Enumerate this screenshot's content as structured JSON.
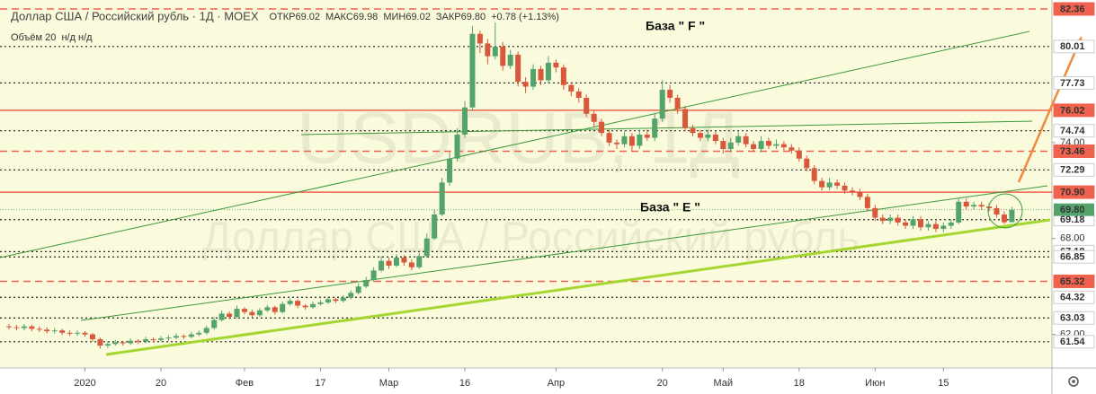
{
  "chart_data": {
    "type": "candlestick",
    "title": "Доллар США / Российский рубль · 1Д · MOEX",
    "ohlc_legend": [
      "ОТКР69.02",
      "МАКС69.98",
      "МИН69.02",
      "ЗАКР69.80",
      "+0.78 (+1.13%)"
    ],
    "volume_legend": "Объём 20  н/д н/д",
    "watermark": "USDRUB, 1Д",
    "watermark_subtitle": "Доллар США / Российский рубль",
    "annotations": [
      "База \" F \"",
      "База \" E \""
    ],
    "up_color": "#53a36b",
    "down_color": "#d9573a",
    "ylim": [
      59.9,
      82.92
    ],
    "yticks": [
      {
        "value": 74,
        "label": "74.00"
      },
      {
        "value": 68,
        "label": "68.00"
      },
      {
        "value": 62,
        "label": "62.00"
      }
    ],
    "levels": [
      {
        "value": 82.36,
        "style": "dashed",
        "color": "#f0624d"
      },
      {
        "value": 80.01,
        "style": "dotted",
        "color": "#222222"
      },
      {
        "value": 77.73,
        "style": "dotted",
        "color": "#222222"
      },
      {
        "value": 76.02,
        "style": "solid",
        "color": "#f0624d"
      },
      {
        "value": 74.74,
        "style": "dotted",
        "color": "#222222"
      },
      {
        "value": 73.46,
        "style": "dashed",
        "color": "#f0624d"
      },
      {
        "value": 72.29,
        "style": "dotted",
        "color": "#222222"
      },
      {
        "value": 70.9,
        "label": "70.90",
        "style": "solid",
        "color": "#f0624d"
      },
      {
        "value": 69.18,
        "style": "dotted",
        "color": "#222222"
      },
      {
        "value": 67.18,
        "style": "dotted",
        "color": "#222222"
      },
      {
        "value": 66.85,
        "style": "dotted",
        "color": "#222222"
      },
      {
        "value": 65.32,
        "style": "dashed",
        "color": "#f0624d"
      },
      {
        "value": 64.32,
        "style": "dotted",
        "color": "#222222"
      },
      {
        "value": 63.03,
        "style": "dotted",
        "color": "#222222"
      },
      {
        "value": 61.54,
        "style": "dotted",
        "color": "#222222"
      }
    ],
    "last_price": {
      "value": 69.8,
      "label": "69.80"
    },
    "categories": [
      null,
      null,
      null,
      null,
      null,
      null,
      null,
      null,
      null,
      null,
      "2020",
      null,
      null,
      null,
      null,
      null,
      null,
      null,
      null,
      null,
      "20",
      null,
      null,
      null,
      null,
      null,
      null,
      null,
      null,
      null,
      null,
      "Фев",
      null,
      null,
      null,
      null,
      null,
      null,
      null,
      null,
      null,
      "17",
      null,
      null,
      null,
      null,
      null,
      null,
      null,
      null,
      "Мар",
      null,
      null,
      null,
      null,
      null,
      null,
      null,
      null,
      null,
      "16",
      null,
      null,
      null,
      null,
      null,
      null,
      null,
      null,
      null,
      null,
      null,
      "Апр",
      null,
      null,
      null,
      null,
      null,
      null,
      null,
      null,
      null,
      null,
      null,
      null,
      null,
      "20",
      null,
      null,
      null,
      null,
      null,
      null,
      null,
      "Май",
      null,
      null,
      null,
      null,
      null,
      null,
      null,
      null,
      null,
      "18",
      null,
      null,
      null,
      null,
      null,
      null,
      null,
      null,
      null,
      "Июн",
      null,
      null,
      null,
      null,
      null,
      null,
      null,
      null,
      "15",
      null,
      null,
      null,
      null,
      null,
      null,
      null,
      null,
      null
    ],
    "ohlc": [
      [
        62.5,
        62.65,
        62.3,
        62.45
      ],
      [
        62.45,
        62.6,
        62.25,
        62.4
      ],
      [
        62.4,
        62.65,
        62.25,
        62.5
      ],
      [
        62.5,
        62.6,
        62.2,
        62.35
      ],
      [
        62.35,
        62.5,
        62.15,
        62.3
      ],
      [
        62.3,
        62.45,
        62.05,
        62.2
      ],
      [
        62.2,
        62.4,
        62.05,
        62.25
      ],
      [
        62.25,
        62.35,
        61.95,
        62.1
      ],
      [
        62.1,
        62.25,
        61.9,
        62.05
      ],
      [
        62.05,
        62.25,
        61.9,
        62.1
      ],
      [
        62.1,
        62.2,
        61.85,
        62.0
      ],
      [
        62.0,
        62.1,
        61.55,
        61.7
      ],
      [
        61.7,
        61.8,
        61.1,
        61.3
      ],
      [
        61.3,
        61.55,
        61.15,
        61.4
      ],
      [
        61.4,
        61.65,
        61.3,
        61.5
      ],
      [
        61.5,
        61.6,
        61.3,
        61.45
      ],
      [
        61.45,
        61.75,
        61.35,
        61.6
      ],
      [
        61.6,
        61.7,
        61.4,
        61.55
      ],
      [
        61.55,
        61.85,
        61.45,
        61.7
      ],
      [
        61.7,
        61.8,
        61.5,
        61.65
      ],
      [
        61.65,
        61.9,
        61.55,
        61.75
      ],
      [
        61.75,
        61.95,
        61.6,
        61.8
      ],
      [
        61.8,
        62.05,
        61.7,
        61.9
      ],
      [
        61.9,
        62.0,
        61.7,
        61.85
      ],
      [
        61.85,
        62.15,
        61.75,
        62.0
      ],
      [
        62.0,
        62.25,
        61.9,
        62.1
      ],
      [
        62.1,
        62.55,
        62.0,
        62.4
      ],
      [
        62.4,
        63.1,
        62.3,
        62.9
      ],
      [
        62.9,
        63.5,
        62.8,
        63.3
      ],
      [
        63.3,
        63.45,
        62.95,
        63.1
      ],
      [
        63.1,
        63.8,
        63.0,
        63.6
      ],
      [
        63.6,
        63.7,
        63.25,
        63.4
      ],
      [
        63.4,
        63.55,
        63.05,
        63.2
      ],
      [
        63.2,
        63.65,
        63.1,
        63.5
      ],
      [
        63.5,
        63.85,
        63.4,
        63.7
      ],
      [
        63.7,
        63.8,
        63.25,
        63.4
      ],
      [
        63.4,
        64.05,
        63.3,
        63.9
      ],
      [
        63.9,
        64.25,
        63.8,
        64.1
      ],
      [
        64.1,
        64.2,
        63.65,
        63.8
      ],
      [
        63.8,
        63.9,
        63.55,
        63.7
      ],
      [
        63.7,
        64.05,
        63.6,
        63.9
      ],
      [
        63.9,
        64.15,
        63.8,
        64.0
      ],
      [
        64.0,
        64.35,
        63.9,
        64.2
      ],
      [
        64.2,
        64.3,
        63.95,
        64.1
      ],
      [
        64.1,
        64.45,
        64.0,
        64.3
      ],
      [
        64.3,
        64.75,
        64.2,
        64.6
      ],
      [
        64.6,
        65.2,
        64.5,
        65.0
      ],
      [
        65.0,
        65.6,
        64.9,
        65.4
      ],
      [
        65.4,
        66.2,
        65.3,
        66.0
      ],
      [
        66.0,
        66.9,
        65.9,
        66.6
      ],
      [
        66.6,
        66.8,
        66.1,
        66.3
      ],
      [
        66.3,
        67.0,
        66.2,
        66.8
      ],
      [
        66.8,
        66.95,
        66.3,
        66.5
      ],
      [
        66.5,
        66.7,
        66.0,
        66.2
      ],
      [
        66.2,
        67.1,
        66.1,
        66.9
      ],
      [
        66.9,
        68.3,
        66.8,
        68.0
      ],
      [
        68.0,
        69.8,
        67.9,
        69.5
      ],
      [
        69.5,
        71.8,
        69.4,
        71.5
      ],
      [
        71.5,
        73.4,
        71.3,
        73.0
      ],
      [
        73.0,
        74.9,
        72.8,
        74.5
      ],
      [
        74.5,
        76.6,
        74.3,
        76.2
      ],
      [
        76.2,
        81.3,
        76.0,
        80.8
      ],
      [
        80.8,
        81.0,
        79.6,
        80.2
      ],
      [
        80.2,
        80.5,
        78.9,
        79.4
      ],
      [
        79.4,
        81.5,
        79.2,
        80.0
      ],
      [
        80.0,
        80.3,
        78.5,
        78.8
      ],
      [
        78.8,
        79.8,
        78.6,
        79.5
      ],
      [
        79.5,
        79.7,
        77.5,
        77.8
      ],
      [
        77.8,
        78.1,
        77.1,
        77.5
      ],
      [
        77.5,
        78.9,
        77.3,
        78.6
      ],
      [
        78.6,
        78.8,
        77.6,
        77.9
      ],
      [
        77.9,
        79.4,
        77.7,
        79.0
      ],
      [
        79.0,
        79.2,
        78.4,
        78.7
      ],
      [
        78.7,
        78.9,
        77.3,
        77.6
      ],
      [
        77.6,
        77.8,
        76.9,
        77.2
      ],
      [
        77.2,
        77.4,
        76.5,
        76.8
      ],
      [
        76.8,
        77.0,
        75.6,
        75.8
      ],
      [
        75.8,
        76.0,
        75.0,
        75.3
      ],
      [
        75.3,
        75.5,
        74.4,
        74.6
      ],
      [
        74.6,
        74.8,
        73.8,
        74.0
      ],
      [
        74.0,
        74.2,
        73.6,
        73.9
      ],
      [
        73.9,
        74.7,
        73.7,
        74.4
      ],
      [
        74.4,
        74.6,
        73.5,
        73.8
      ],
      [
        73.8,
        74.8,
        73.6,
        74.5
      ],
      [
        74.5,
        74.8,
        74.1,
        74.3
      ],
      [
        74.3,
        75.8,
        74.1,
        75.5
      ],
      [
        75.5,
        77.9,
        75.3,
        77.3
      ],
      [
        77.3,
        77.6,
        76.5,
        76.8
      ],
      [
        76.8,
        77.0,
        75.8,
        76.1
      ],
      [
        76.1,
        76.3,
        74.7,
        74.9
      ],
      [
        74.9,
        75.1,
        74.4,
        74.6
      ],
      [
        74.6,
        74.8,
        74.1,
        74.3
      ],
      [
        74.3,
        74.8,
        74.1,
        74.5
      ],
      [
        74.5,
        74.7,
        73.9,
        74.1
      ],
      [
        74.1,
        74.3,
        73.3,
        73.6
      ],
      [
        73.6,
        74.3,
        73.4,
        74.0
      ],
      [
        74.0,
        74.7,
        73.8,
        74.4
      ],
      [
        74.4,
        74.6,
        73.7,
        73.9
      ],
      [
        73.9,
        74.1,
        73.4,
        73.6
      ],
      [
        73.6,
        74.4,
        73.4,
        74.1
      ],
      [
        74.1,
        74.3,
        73.6,
        73.8
      ],
      [
        73.8,
        74.2,
        73.6,
        73.9
      ],
      [
        73.9,
        74.1,
        73.5,
        73.7
      ],
      [
        73.7,
        73.9,
        73.3,
        73.5
      ],
      [
        73.5,
        73.7,
        72.8,
        73.0
      ],
      [
        73.0,
        73.2,
        72.2,
        72.4
      ],
      [
        72.4,
        72.6,
        71.4,
        71.6
      ],
      [
        71.6,
        71.8,
        71.0,
        71.2
      ],
      [
        71.2,
        71.8,
        71.0,
        71.5
      ],
      [
        71.5,
        71.7,
        71.1,
        71.3
      ],
      [
        71.3,
        71.5,
        70.8,
        71.0
      ],
      [
        71.0,
        71.2,
        70.7,
        70.9
      ],
      [
        70.9,
        71.1,
        70.4,
        70.6
      ],
      [
        70.6,
        70.8,
        69.7,
        69.9
      ],
      [
        69.9,
        70.1,
        69.1,
        69.3
      ],
      [
        69.3,
        69.5,
        68.9,
        69.1
      ],
      [
        69.1,
        69.5,
        68.9,
        69.3
      ],
      [
        69.3,
        69.5,
        68.8,
        69.0
      ],
      [
        69.0,
        69.2,
        68.6,
        68.8
      ],
      [
        68.8,
        69.4,
        68.6,
        69.2
      ],
      [
        69.2,
        69.4,
        68.5,
        68.7
      ],
      [
        68.7,
        69.1,
        68.5,
        68.9
      ],
      [
        68.9,
        69.1,
        68.4,
        68.6
      ],
      [
        68.6,
        69.0,
        68.4,
        68.8
      ],
      [
        68.8,
        69.2,
        68.6,
        69.0
      ],
      [
        69.0,
        70.5,
        68.9,
        70.3
      ],
      [
        70.3,
        70.5,
        69.8,
        70.0
      ],
      [
        70.0,
        70.3,
        69.8,
        70.1
      ],
      [
        70.1,
        70.3,
        69.8,
        70.0
      ],
      [
        70.0,
        70.2,
        69.7,
        69.9
      ],
      [
        69.9,
        70.1,
        69.3,
        69.5
      ],
      [
        69.5,
        69.7,
        68.9,
        69.02
      ],
      [
        69.02,
        69.98,
        69.02,
        69.8
      ]
    ]
  }
}
